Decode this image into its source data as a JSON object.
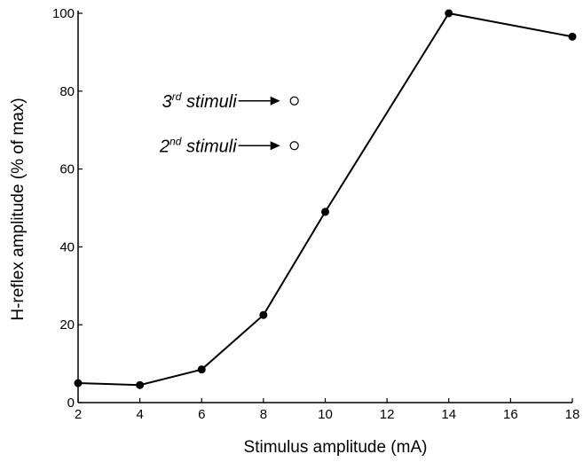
{
  "chart_data": {
    "type": "line",
    "xlabel": "Stimulus amplitude (mA)",
    "ylabel": "H-reflex amplitude (% of max)",
    "xlim": [
      2,
      18
    ],
    "ylim": [
      0,
      100
    ],
    "xticks": [
      2,
      4,
      6,
      8,
      10,
      12,
      14,
      16,
      18
    ],
    "yticks": [
      0,
      20,
      40,
      60,
      80,
      100
    ],
    "grid": false,
    "series": [
      {
        "x": [
          2,
          4,
          6,
          8,
          10,
          14,
          18
        ],
        "y": [
          5,
          4.5,
          8.5,
          22.5,
          49,
          100,
          94
        ],
        "marker": "filled-circle",
        "color": "#000000"
      }
    ],
    "annotations": [
      {
        "base": "3",
        "sup": "rd",
        "text": " stimuli",
        "x": 9,
        "y": 77.5,
        "marker": "open-circle"
      },
      {
        "base": "2",
        "sup": "nd",
        "text": " stimuli",
        "x": 9,
        "y": 66,
        "marker": "open-circle"
      }
    ]
  }
}
